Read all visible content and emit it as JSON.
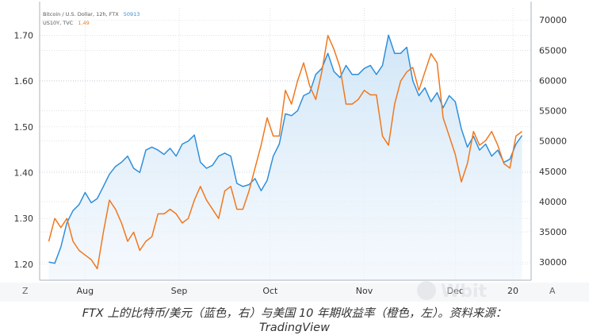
{
  "legend": {
    "btc_label": "Bitcoin / U.S. Dollar, 12h, FTX",
    "btc_value": "50913",
    "us10y_label": "US10Y, TVC",
    "us10y_value": "1.49"
  },
  "caption": {
    "line1": "FTX 上的比特币/美元（蓝色，右）与美国 10 年期收益率（橙色，左）。资料来源：",
    "line2": "TradingView"
  },
  "watermark": "Wbit",
  "colors": {
    "btc_line": "#2f8fdb",
    "btc_fill_top": "#cfe5f7",
    "us10y_line": "#f0781e",
    "grid": "#c8d0d8",
    "axis_text": "#333333"
  },
  "chart_data": {
    "type": "line",
    "x": [
      "2021-07-20",
      "2021-07-22",
      "2021-07-24",
      "2021-07-26",
      "2021-07-28",
      "2021-07-30",
      "2021-08-01",
      "2021-08-03",
      "2021-08-05",
      "2021-08-07",
      "2021-08-09",
      "2021-08-11",
      "2021-08-13",
      "2021-08-15",
      "2021-08-17",
      "2021-08-19",
      "2021-08-21",
      "2021-08-23",
      "2021-08-25",
      "2021-08-27",
      "2021-08-29",
      "2021-08-31",
      "2021-09-02",
      "2021-09-04",
      "2021-09-06",
      "2021-09-08",
      "2021-09-10",
      "2021-09-12",
      "2021-09-14",
      "2021-09-16",
      "2021-09-18",
      "2021-09-20",
      "2021-09-22",
      "2021-09-24",
      "2021-09-26",
      "2021-09-28",
      "2021-09-30",
      "2021-10-02",
      "2021-10-04",
      "2021-10-06",
      "2021-10-08",
      "2021-10-10",
      "2021-10-12",
      "2021-10-14",
      "2021-10-16",
      "2021-10-18",
      "2021-10-20",
      "2021-10-22",
      "2021-10-24",
      "2021-10-26",
      "2021-10-28",
      "2021-10-30",
      "2021-11-01",
      "2021-11-03",
      "2021-11-05",
      "2021-11-07",
      "2021-11-09",
      "2021-11-11",
      "2021-11-13",
      "2021-11-15",
      "2021-11-17",
      "2021-11-19",
      "2021-11-21",
      "2021-11-23",
      "2021-11-25",
      "2021-11-27",
      "2021-11-29",
      "2021-12-01",
      "2021-12-03",
      "2021-12-05",
      "2021-12-07",
      "2021-12-09",
      "2021-12-11",
      "2021-12-13",
      "2021-12-15",
      "2021-12-17",
      "2021-12-19",
      "2021-12-21",
      "2021-12-23"
    ],
    "x_tick_labels": [
      "Aug",
      "Sep",
      "Oct",
      "Nov",
      "Dec",
      "20"
    ],
    "x_tick_dates": [
      "2021-08-01",
      "2021-09-01",
      "2021-10-01",
      "2021-11-01",
      "2021-12-01",
      "2021-12-20"
    ],
    "series": [
      {
        "name": "Bitcoin / U.S. Dollar, 12h, FTX",
        "axis": "right",
        "color": "#2f8fdb",
        "values": [
          30000,
          29800,
          32500,
          36500,
          38500,
          39500,
          41500,
          39800,
          40500,
          42500,
          44500,
          45800,
          46500,
          47500,
          45500,
          44800,
          48500,
          49000,
          48500,
          47800,
          48800,
          47500,
          49500,
          50000,
          51000,
          46500,
          45500,
          46000,
          47500,
          48000,
          47500,
          43000,
          42500,
          42800,
          43800,
          41800,
          43500,
          47500,
          49500,
          54500,
          54200,
          55000,
          57500,
          58000,
          61000,
          62000,
          64500,
          61500,
          60500,
          62500,
          61000,
          61000,
          62000,
          62500,
          61000,
          62500,
          67500,
          64500,
          64500,
          65500,
          60000,
          57500,
          58800,
          56500,
          58000,
          55500,
          57500,
          56500,
          52000,
          49000,
          50800,
          48500,
          49500,
          47500,
          48500,
          46500,
          47000,
          49500,
          50913
        ]
      },
      {
        "name": "US10Y, TVC",
        "axis": "left",
        "color": "#f0781e",
        "values": [
          1.25,
          1.3,
          1.28,
          1.3,
          1.25,
          1.23,
          1.22,
          1.21,
          1.19,
          1.27,
          1.34,
          1.32,
          1.29,
          1.25,
          1.27,
          1.23,
          1.25,
          1.26,
          1.31,
          1.31,
          1.32,
          1.31,
          1.29,
          1.3,
          1.34,
          1.37,
          1.34,
          1.32,
          1.3,
          1.36,
          1.37,
          1.32,
          1.32,
          1.36,
          1.41,
          1.46,
          1.52,
          1.48,
          1.48,
          1.58,
          1.55,
          1.6,
          1.64,
          1.59,
          1.56,
          1.62,
          1.7,
          1.67,
          1.63,
          1.55,
          1.55,
          1.56,
          1.58,
          1.57,
          1.57,
          1.48,
          1.46,
          1.55,
          1.6,
          1.62,
          1.63,
          1.58,
          1.62,
          1.66,
          1.64,
          1.52,
          1.48,
          1.44,
          1.38,
          1.42,
          1.49,
          1.46,
          1.47,
          1.49,
          1.46,
          1.42,
          1.41,
          1.48,
          1.49
        ]
      }
    ],
    "y_left": {
      "ticks": [
        1.2,
        1.3,
        1.4,
        1.5,
        1.6,
        1.7
      ],
      "tick_labels": [
        "1.20",
        "1.30",
        "1.40",
        "1.50",
        "1.60",
        "1.70"
      ],
      "range": [
        1.165,
        1.76
      ]
    },
    "y_right": {
      "ticks": [
        30000,
        35000,
        40000,
        45000,
        50000,
        55000,
        60000,
        65000,
        70000
      ],
      "tick_labels": [
        "30000",
        "35000",
        "40000",
        "45000",
        "50000",
        "55000",
        "60000",
        "65000",
        "70000"
      ],
      "range": [
        27000,
        72000
      ]
    },
    "corner_labels": {
      "bottom_left": "Z",
      "bottom_right": "A"
    },
    "grid": true,
    "legend_position": "top-left"
  }
}
